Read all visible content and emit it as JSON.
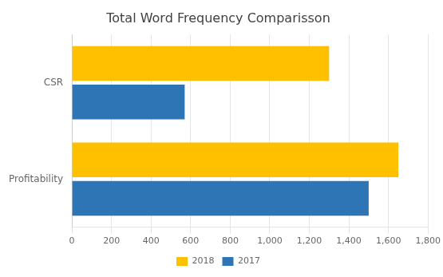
{
  "chart_data": {
    "type": "bar",
    "orientation": "horizontal",
    "title": "Total Word Frequency Comparisson",
    "categories": [
      "Profitability",
      "CSR"
    ],
    "series": [
      {
        "name": "2018",
        "color": "#FFC000",
        "values": [
          1650,
          1300
        ]
      },
      {
        "name": "2017",
        "color": "#2E75B6",
        "values": [
          1500,
          570
        ]
      }
    ],
    "xlim": [
      0,
      1800
    ],
    "xticks": [
      0,
      200,
      400,
      600,
      800,
      1000,
      1200,
      1400,
      1600,
      1800
    ],
    "grid": true,
    "legend": "bottom"
  }
}
